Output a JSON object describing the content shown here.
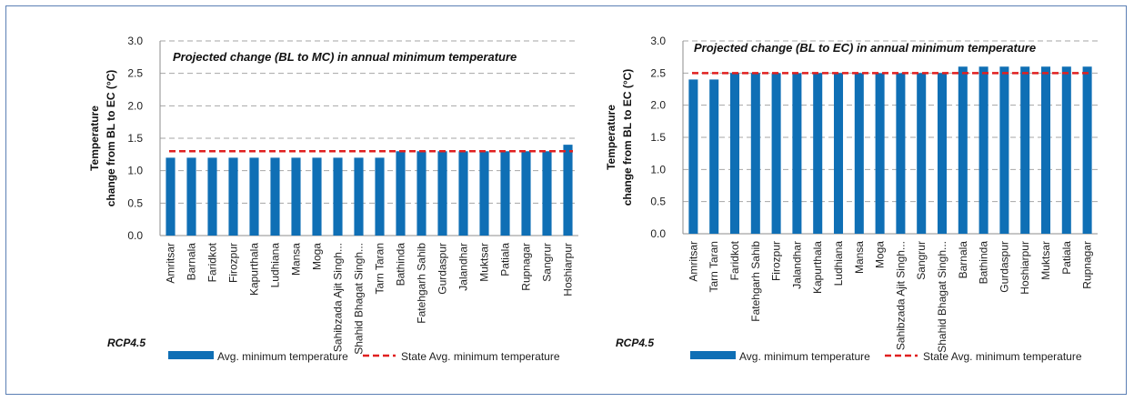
{
  "chart_data": [
    {
      "type": "bar",
      "title": "Projected change (BL to MC)  in annual minimum temperature",
      "ylabel_line1": "Temperature",
      "ylabel_line2": "change from BL to EC (°C)",
      "scenario": "RCP4.5",
      "ylim": [
        0,
        3.0
      ],
      "yticks": [
        "0.0",
        "0.5",
        "1.0",
        "1.5",
        "2.0",
        "2.5",
        "3.0"
      ],
      "grid": true,
      "legend_placement": "bottom",
      "categories": [
        "Amritsar",
        "Barnala",
        "Faridkot",
        "Firozpur",
        "Kapurthala",
        "Ludhiana",
        "Mansa",
        "Moga",
        "Sahibzada Ajit Singh...",
        "Shahid Bhagat Singh...",
        "Tarn Taran",
        "Bathinda",
        "Fatehgarh Sahib",
        "Gurdaspur",
        "Jalandhar",
        "Muktsar",
        "Patiala",
        "Rupnagar",
        "Sangrur",
        "Hoshiarpur"
      ],
      "series": [
        {
          "name": "Avg. minimum temperature",
          "type": "bar",
          "color": "#0f6fb5",
          "values": [
            1.2,
            1.2,
            1.2,
            1.2,
            1.2,
            1.2,
            1.2,
            1.2,
            1.2,
            1.2,
            1.2,
            1.3,
            1.3,
            1.3,
            1.3,
            1.3,
            1.3,
            1.3,
            1.3,
            1.4
          ]
        },
        {
          "name": "State Avg. minimum temperature",
          "type": "line",
          "style": "dashed",
          "color": "#e02020",
          "value": 1.3
        }
      ]
    },
    {
      "type": "bar",
      "title": "Projected change (BL to EC)  in annual minimum temperature",
      "ylabel_line1": "Temperature",
      "ylabel_line2": "change from BL to EC (°C)",
      "scenario": "RCP4.5",
      "ylim": [
        0,
        3.0
      ],
      "yticks": [
        "0.0",
        "0.5",
        "1.0",
        "1.5",
        "2.0",
        "2.5",
        "3.0"
      ],
      "grid": true,
      "legend_placement": "bottom",
      "categories": [
        "Amritsar",
        "Tarn Taran",
        "Faridkot",
        "Fatehgarh Sahib",
        "Firozpur",
        "Jalandhar",
        "Kapurthala",
        "Ludhiana",
        "Mansa",
        "Moga",
        "Sahibzada Ajit Singh...",
        "Sangrur",
        "Shahid Bhagat Singh...",
        "Barnala",
        "Bathinda",
        "Gurdaspur",
        "Hoshiarpur",
        "Muktsar",
        "Patiala",
        "Rupnagar"
      ],
      "series": [
        {
          "name": "Avg. minimum temperature",
          "type": "bar",
          "color": "#0f6fb5",
          "values": [
            2.4,
            2.4,
            2.5,
            2.5,
            2.5,
            2.5,
            2.5,
            2.5,
            2.5,
            2.5,
            2.5,
            2.5,
            2.5,
            2.6,
            2.6,
            2.6,
            2.6,
            2.6,
            2.6,
            2.6
          ]
        },
        {
          "name": "State Avg. minimum temperature",
          "type": "line",
          "style": "dashed",
          "color": "#e02020",
          "value": 2.5
        }
      ]
    }
  ]
}
